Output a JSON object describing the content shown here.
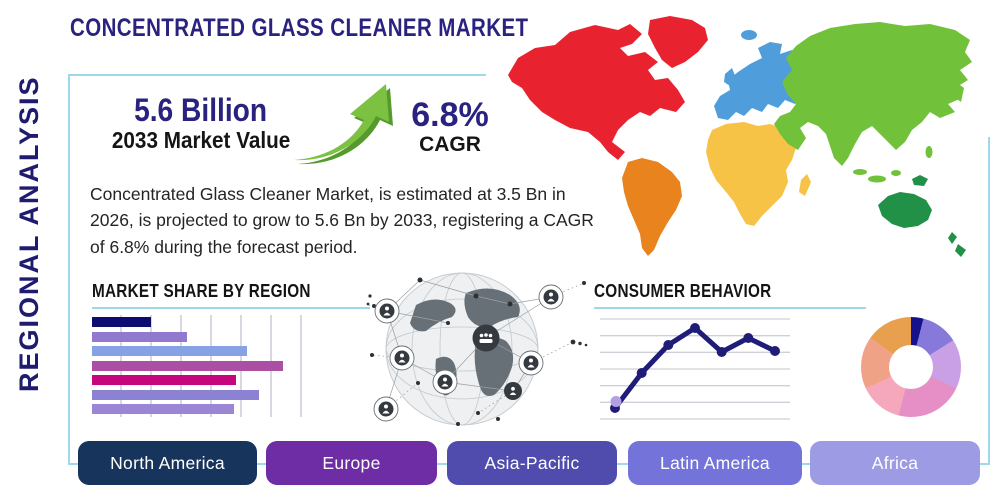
{
  "title": "CONCENTRATED GLASS CLEANER MARKET",
  "side_label": "REGIONAL ANALYSIS",
  "stats": {
    "market_value": "5.6 Billion",
    "market_value_caption": "2033 Market Value",
    "cagr": "6.8%",
    "cagr_caption": "CAGR",
    "arrow_color": "#7cc142",
    "arrow_shadow_color": "#559b2c"
  },
  "description": "Concentrated Glass Cleaner Market, is estimated at 3.5 Bn in 2026, is projected to grow to 5.6 Bn by 2033, registering a CAGR of 6.8% during the forecast period.",
  "colors": {
    "accent_navy": "#29227e",
    "frame_teal": "#9fd8e9",
    "text_black": "#151515"
  },
  "chart_data": [
    {
      "type": "bar",
      "title": "MARKET SHARE BY REGION",
      "orientation": "horizontal",
      "categories": [
        "bar-1",
        "bar-2",
        "bar-3",
        "bar-4",
        "bar-5",
        "bar-6",
        "bar-7"
      ],
      "values_pct": [
        28,
        45,
        73,
        90,
        68,
        79,
        67
      ],
      "colors": [
        "#0d0c70",
        "#9179cf",
        "#87a2e4",
        "#ab4fa5",
        "#c5067c",
        "#8c82d4",
        "#9a86d4"
      ],
      "grid": true,
      "gridline_count": 7,
      "xlabel": "",
      "ylabel": ""
    },
    {
      "type": "line",
      "title": "CONSUMER BEHAVIOR",
      "x": [
        1,
        2,
        3,
        4,
        5,
        6,
        7
      ],
      "values": [
        11,
        46,
        74,
        91,
        67,
        81,
        68
      ],
      "ylim": [
        0,
        100
      ],
      "gridlines": 7,
      "grid": true,
      "line_color": "#201d78",
      "marker_color": "#201d78",
      "start_marker_color": "#b2a0e2",
      "legend": "none"
    },
    {
      "type": "pie",
      "title": "",
      "donut": true,
      "slices": [
        {
          "pct": 4,
          "color": "#15128c"
        },
        {
          "pct": 12,
          "color": "#8779da"
        },
        {
          "pct": 16,
          "color": "#c9a0e6"
        },
        {
          "pct": 22,
          "color": "#e68fc6"
        },
        {
          "pct": 14,
          "color": "#f5a8bb"
        },
        {
          "pct": 17,
          "color": "#f0a287"
        },
        {
          "pct": 15,
          "color": "#e8a04f"
        }
      ]
    }
  ],
  "map": {
    "regions": [
      {
        "name": "north-america",
        "color": "#e8232f"
      },
      {
        "name": "south-america",
        "color": "#e8831e"
      },
      {
        "name": "europe",
        "color": "#4f9edb"
      },
      {
        "name": "africa",
        "color": "#f6c347"
      },
      {
        "name": "asia",
        "color": "#72c13a"
      },
      {
        "name": "oceania",
        "color": "#229148"
      }
    ]
  },
  "buttons": [
    {
      "label": "North America",
      "color": "#17355c"
    },
    {
      "label": "Europe",
      "color": "#6e2ca5"
    },
    {
      "label": "Asia-Pacific",
      "color": "#4f4cae"
    },
    {
      "label": "Latin America",
      "color": "#7473d9"
    },
    {
      "label": "Africa",
      "color": "#9d9be3"
    }
  ]
}
